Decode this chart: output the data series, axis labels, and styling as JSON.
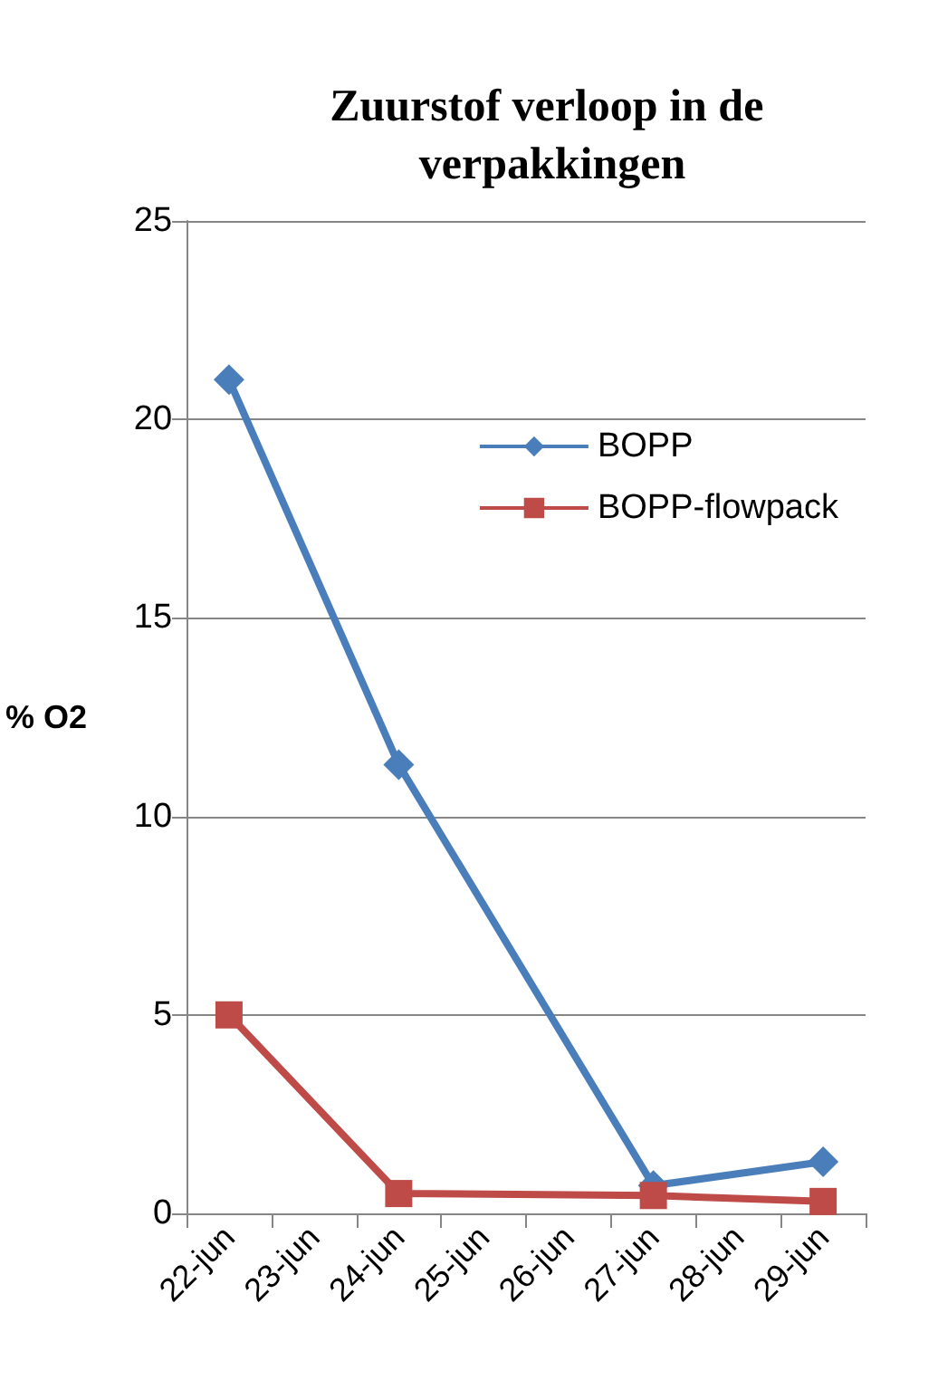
{
  "chart_data": {
    "type": "line",
    "title": "Zuurstof verloop in de verpakkingen",
    "ylabel": "% O2",
    "categories": [
      "22-jun",
      "23-jun",
      "24-jun",
      "25-jun",
      "26-jun",
      "27-jun",
      "28-jun",
      "29-jun"
    ],
    "series": [
      {
        "name": "BOPP",
        "color": "#4a7ebb",
        "marker": "diamond",
        "values": [
          21,
          null,
          11.3,
          null,
          null,
          0.7,
          null,
          1.3
        ]
      },
      {
        "name": "BOPP-flowpack",
        "color": "#be4b48",
        "marker": "square",
        "values": [
          5,
          null,
          0.5,
          null,
          null,
          0.45,
          null,
          0.3
        ]
      }
    ],
    "ylim": [
      0,
      25
    ],
    "yticks": [
      0,
      5,
      10,
      15,
      20,
      25
    ],
    "grid": "y",
    "legend": "top right"
  }
}
